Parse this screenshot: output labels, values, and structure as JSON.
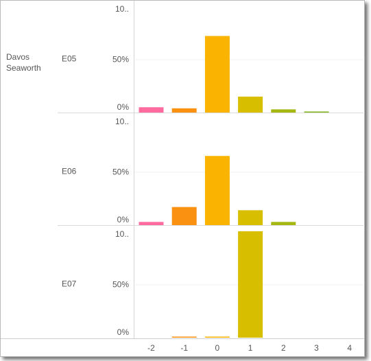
{
  "chart_data": {
    "type": "bar",
    "group": "Davos Seaworth",
    "group_lines": [
      "Davos",
      "Seaworth"
    ],
    "categories": [
      "-2",
      "-1",
      "0",
      "1",
      "2",
      "3",
      "4"
    ],
    "y_tick_labels": [
      "10..",
      "50%",
      "0%"
    ],
    "ylim": [
      0,
      100
    ],
    "grid": true,
    "colors": [
      "#ff6b9f",
      "#fb9110",
      "#f9b300",
      "#d7bf00",
      "#a6b712",
      "#84b61d",
      "#6cae2e"
    ],
    "panels": [
      {
        "label": "E05",
        "values": [
          5,
          4,
          72,
          15,
          3,
          1,
          0
        ]
      },
      {
        "label": "E06",
        "values": [
          3,
          17,
          65,
          14,
          3,
          0,
          0
        ]
      },
      {
        "label": "E07",
        "values": [
          0,
          1,
          1,
          100,
          0,
          0,
          0
        ]
      }
    ]
  }
}
